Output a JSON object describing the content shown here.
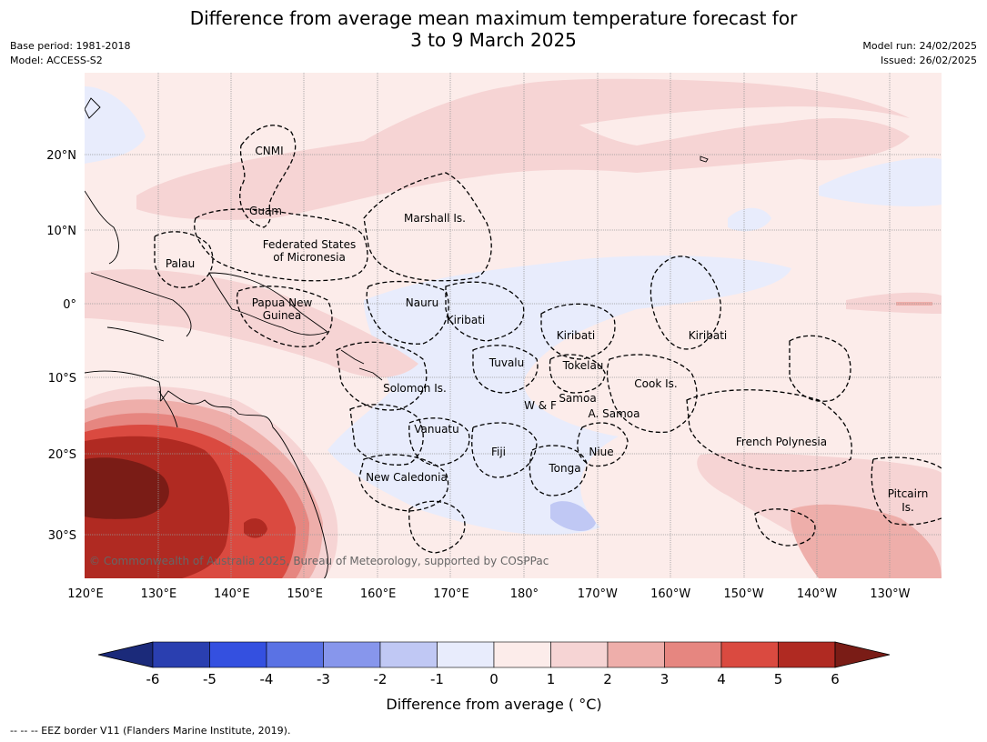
{
  "title_line1": "Difference from average mean maximum temperature forecast for",
  "title_line2": "3 to 9 March 2025",
  "meta_left": [
    "Base period: 1981-2018",
    "Model: ACCESS-S2"
  ],
  "meta_right": [
    "Model run: 24/02/2025",
    "Issued: 26/02/2025"
  ],
  "lon_ticks": [
    "120°E",
    "130°E",
    "140°E",
    "150°E",
    "160°E",
    "170°E",
    "180°",
    "170°W",
    "160°W",
    "150°W",
    "140°W",
    "130°W"
  ],
  "lat_ticks": [
    "20°N",
    "10°N",
    "0°",
    "10°S",
    "20°S",
    "30°S"
  ],
  "regions": [
    {
      "name": "CNMI"
    },
    {
      "name": "Guam"
    },
    {
      "name": "Marshall Is."
    },
    {
      "name": "Federated States"
    },
    {
      "name": "of Micronesia"
    },
    {
      "name": "Palau"
    },
    {
      "name": "Papua New"
    },
    {
      "name": "Guinea"
    },
    {
      "name": "Nauru"
    },
    {
      "name": "Kiribati"
    },
    {
      "name": "Kiribati"
    },
    {
      "name": "Kiribati"
    },
    {
      "name": "Tuvalu"
    },
    {
      "name": "Tokelau"
    },
    {
      "name": "Cook Is."
    },
    {
      "name": "Solomon Is."
    },
    {
      "name": "W & F"
    },
    {
      "name": "Samoa"
    },
    {
      "name": "A. Samoa"
    },
    {
      "name": "Vanuatu"
    },
    {
      "name": "Fiji"
    },
    {
      "name": "Niue"
    },
    {
      "name": "Tonga"
    },
    {
      "name": "New Caledonia"
    },
    {
      "name": "French Polynesia"
    },
    {
      "name": "Pitcairn"
    },
    {
      "name": "Is."
    }
  ],
  "copyright": "© Commonwealth of Australia 2025, Bureau of Meteorology, supported by COSPPac",
  "colorbar": {
    "ticks": [
      "-6",
      "-5",
      "-4",
      "-3",
      "-2",
      "-1",
      "0",
      "1",
      "2",
      "3",
      "4",
      "5",
      "6"
    ],
    "label": "Difference from average ( °C)",
    "colors": [
      "#1b2a7a",
      "#2a3fb0",
      "#3450e0",
      "#5a72e4",
      "#8796ec",
      "#c0c8f4",
      "#e8ecfc",
      "#fcecea",
      "#f6d4d4",
      "#eeaeaa",
      "#e68680",
      "#da4a40",
      "#b02a22",
      "#7a1c16"
    ]
  },
  "footnote": "--  --  -- EEZ border V11 (Flanders Marine Institute, 2019)."
}
